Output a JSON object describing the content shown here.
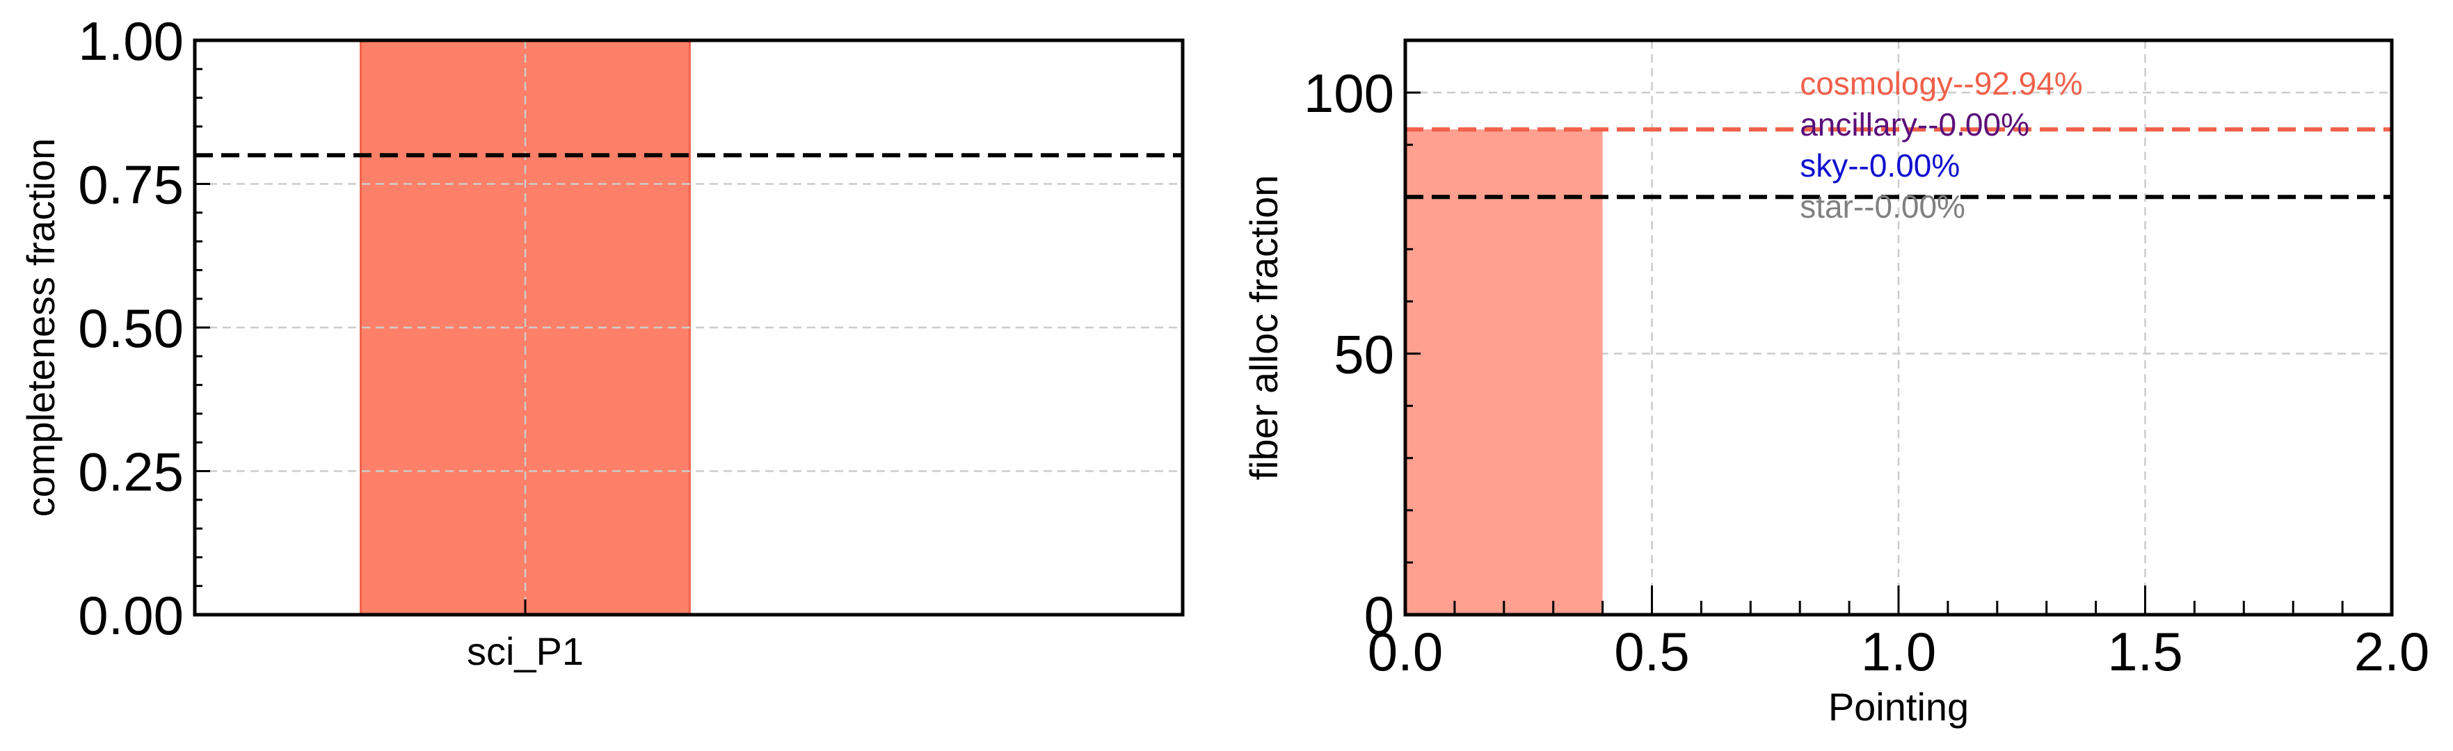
{
  "chart_data": [
    {
      "type": "bar",
      "categories": [
        "sci_P1"
      ],
      "values": [
        1.0
      ],
      "title": "",
      "xlabel": "",
      "ylabel": "completeness fraction",
      "ylim": [
        0,
        1
      ],
      "yticks": [
        0,
        0.25,
        0.5,
        0.75,
        1.0
      ],
      "ytick_labels": [
        "0.00",
        "0.25",
        "0.50",
        "0.75",
        "1.00"
      ],
      "reference_lines": [
        0.8
      ],
      "bar_color": "#ff8068",
      "grid": true
    },
    {
      "type": "bar",
      "x": [
        0
      ],
      "values": [
        92.94
      ],
      "bar_width": 0.4,
      "title": "",
      "xlabel": "Pointing",
      "ylabel": "fiber alloc fraction",
      "xlim": [
        0,
        2
      ],
      "ylim": [
        0,
        110
      ],
      "xticks": [
        0,
        0.5,
        1.0,
        1.5,
        2.0
      ],
      "xtick_labels": [
        "0.0",
        "0.5",
        "1.0",
        "1.5",
        "2.0"
      ],
      "yticks": [
        0,
        50,
        100
      ],
      "ytick_labels": [
        "0",
        "50",
        "100"
      ],
      "reference_lines": [
        {
          "value": 92.94,
          "color": "#f0604a"
        },
        {
          "value": 80,
          "color": "#000000"
        }
      ],
      "annotations": [
        {
          "text": "cosmology--92.94%",
          "color": "#f0604a"
        },
        {
          "text": "ancillary--0.00%",
          "color": "#5a0f7a"
        },
        {
          "text": "sky--0.00%",
          "color": "#1010d0"
        },
        {
          "text": "star--0.00%",
          "color": "#808080"
        }
      ],
      "bar_color": "#ffa090",
      "grid": true
    }
  ]
}
